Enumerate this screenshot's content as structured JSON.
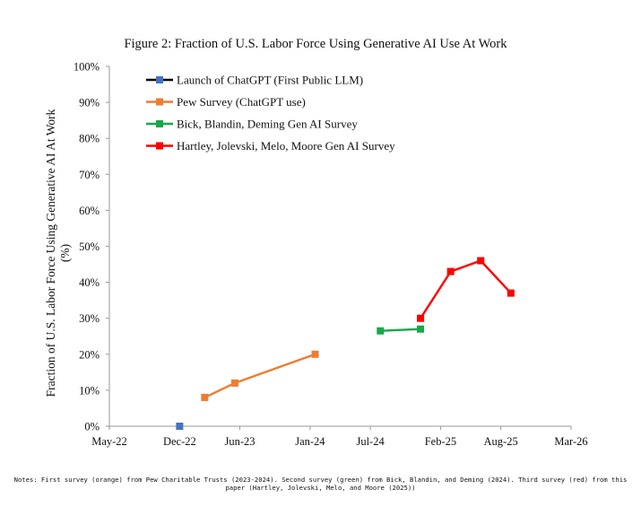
{
  "figure_title": "Figure 2: Fraction of U.S. Labor Force Using Generative AI Use At Work",
  "notes": "Notes: First survey (orange) from Pew Charitable Trusts (2023-2024). Second survey (green) from Bick, Blandin, and Deming (2024). Third survey (red) from this paper (Hartley, Jolevski, Melo, and Moore (2025))",
  "chart_data": {
    "type": "line",
    "title": "Figure 2: Fraction of U.S. Labor Force Using Generative AI Use At Work",
    "xlabel": "",
    "ylabel": "Fraction of U.S. Labor Force Using Generative AI At Work (%)",
    "ylabel_lines": [
      "Fraction of U.S. Labor Force Using Generative AI At Work",
      "(%)"
    ],
    "x_unit": "months since May 2022",
    "xlim": [
      0,
      46
    ],
    "ylim": [
      0,
      100
    ],
    "x_ticks": [
      {
        "x": 0,
        "label": "May-22"
      },
      {
        "x": 7,
        "label": "Dec-22"
      },
      {
        "x": 13,
        "label": "Jun-23"
      },
      {
        "x": 20,
        "label": "Jan-24"
      },
      {
        "x": 26,
        "label": "Jul-24"
      },
      {
        "x": 33,
        "label": "Feb-25"
      },
      {
        "x": 39,
        "label": "Aug-25"
      },
      {
        "x": 46,
        "label": "Mar-26"
      }
    ],
    "y_ticks": [
      {
        "y": 0,
        "label": "0%"
      },
      {
        "y": 10,
        "label": "10%"
      },
      {
        "y": 20,
        "label": "20%"
      },
      {
        "y": 30,
        "label": "30%"
      },
      {
        "y": 40,
        "label": "40%"
      },
      {
        "y": 50,
        "label": "50%"
      },
      {
        "y": 60,
        "label": "60%"
      },
      {
        "y": 70,
        "label": "70%"
      },
      {
        "y": 80,
        "label": "80%"
      },
      {
        "y": 90,
        "label": "90%"
      },
      {
        "y": 100,
        "label": "100%"
      }
    ],
    "grid": false,
    "legend_position": "top-left",
    "series": [
      {
        "name": "Launch of ChatGPT (First Public LLM)",
        "line_color": "#000000",
        "marker_color": "#4472c4",
        "points": [
          {
            "x": 7,
            "y": 0
          }
        ]
      },
      {
        "name": "Pew Survey (ChatGPT use)",
        "line_color": "#ed7d31",
        "marker_color": "#ed7d31",
        "points": [
          {
            "x": 9.5,
            "y": 8
          },
          {
            "x": 12.5,
            "y": 12
          },
          {
            "x": 20.5,
            "y": 20
          }
        ]
      },
      {
        "name": "Bick, Blandin, Deming Gen AI Survey",
        "line_color": "#17a84a",
        "marker_color": "#17a84a",
        "points": [
          {
            "x": 27,
            "y": 26.5
          },
          {
            "x": 31,
            "y": 27
          }
        ]
      },
      {
        "name": "Hartley, Jolevski, Melo, Moore Gen AI Survey",
        "line_color": "#ff0000",
        "marker_color": "#ff0000",
        "points": [
          {
            "x": 31,
            "y": 30
          },
          {
            "x": 34,
            "y": 43
          },
          {
            "x": 37,
            "y": 46
          },
          {
            "x": 40,
            "y": 37
          }
        ]
      }
    ]
  }
}
